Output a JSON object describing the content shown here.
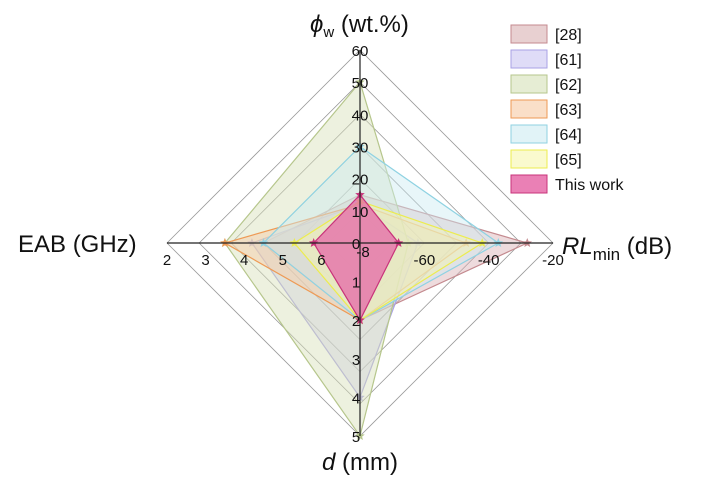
{
  "chart_data": {
    "type": "radar",
    "axes": [
      {
        "key": "phi",
        "label_sym": "ϕ",
        "label_sub": "w",
        "label_rest": " (wt.%)",
        "direction": "up",
        "ticks": [
          "10",
          "20",
          "30",
          "40",
          "50",
          "60"
        ],
        "range": [
          0,
          60
        ]
      },
      {
        "key": "rl",
        "label_sym": "RL",
        "label_sub": "min",
        "label_rest": " (dB)",
        "direction": "right",
        "ticks": [
          "-60",
          "-40",
          "-20"
        ],
        "range": [
          -80,
          -20
        ]
      },
      {
        "key": "d",
        "label_sym": "d",
        "label_sub": "",
        "label_rest": " (mm)",
        "direction": "down",
        "ticks": [
          "1",
          "2",
          "3",
          "4",
          "5"
        ],
        "range": [
          0,
          5
        ]
      },
      {
        "key": "eab",
        "label_sym": "",
        "label_sub": "",
        "label_rest": "EAB (GHz)",
        "direction": "left",
        "ticks": [
          "6",
          "5",
          "4",
          "3",
          "2"
        ],
        "range": [
          7,
          2
        ]
      }
    ],
    "center_labels": [
      "0",
      "-8"
    ],
    "series": [
      {
        "name": "[28]",
        "fill": "#d9b0b3",
        "stroke": "#c48a8f",
        "values": {
          "phi": 15,
          "rl": -28,
          "d": 2.0,
          "eab": 4.5
        }
      },
      {
        "name": "[61]",
        "fill": "#c9c5f2",
        "stroke": "#a9a2e4",
        "values": {
          "phi": 12,
          "rl": -62,
          "d": 4.0,
          "eab": 4.2
        }
      },
      {
        "name": "[62]",
        "fill": "#d6e1b8",
        "stroke": "#b6c68c",
        "values": {
          "phi": 50,
          "rl": -65,
          "d": 5.0,
          "eab": 3.5
        }
      },
      {
        "name": "[63]",
        "fill": "#f7c9a3",
        "stroke": "#ee9a55",
        "values": {
          "phi": 12,
          "rl": -47,
          "d": 2.0,
          "eab": 3.5
        }
      },
      {
        "name": "[64]",
        "fill": "#cdebf1",
        "stroke": "#8fd2e2",
        "values": {
          "phi": 30,
          "rl": -37,
          "d": 2.0,
          "eab": 4.5
        }
      },
      {
        "name": "[65]",
        "fill": "#f7f6ad",
        "stroke": "#ecec4f",
        "values": {
          "phi": 13,
          "rl": -42,
          "d": 2.0,
          "eab": 5.3
        }
      },
      {
        "name": "This work",
        "fill": "#e66aa8",
        "stroke": "#c8337a",
        "values": {
          "phi": 15,
          "rl": -68,
          "d": 2.0,
          "eab": 5.8
        }
      }
    ],
    "legend_position": "top-right",
    "grid": true
  }
}
